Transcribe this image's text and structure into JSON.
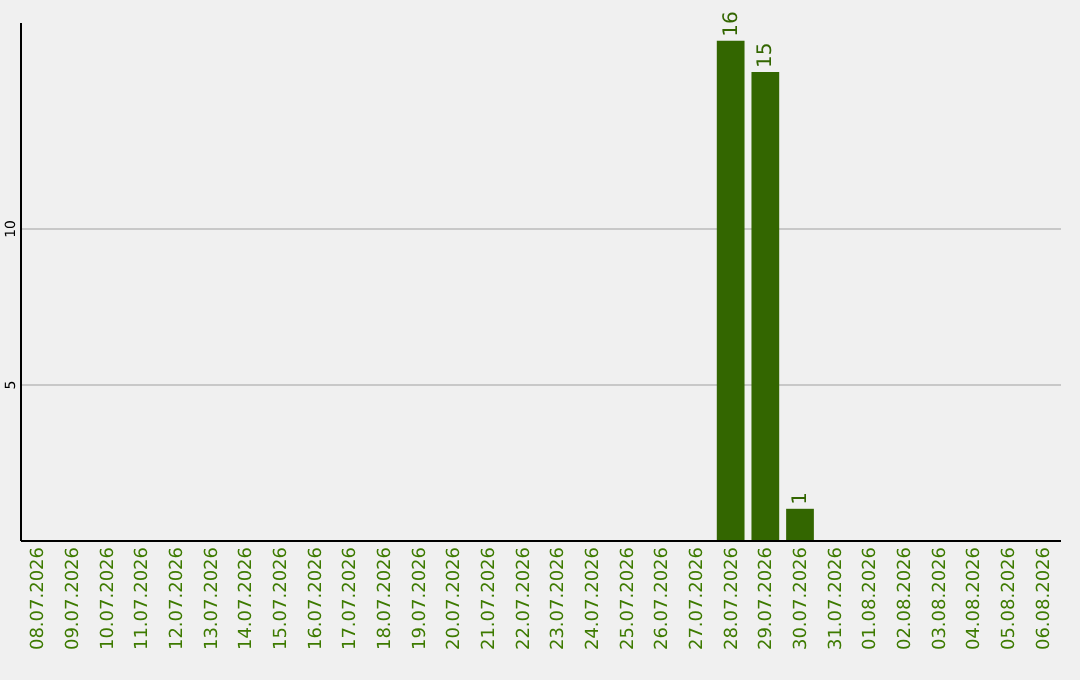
{
  "chart_data": {
    "type": "bar",
    "categories": [
      "08.07.2026",
      "09.07.2026",
      "10.07.2026",
      "11.07.2026",
      "12.07.2026",
      "13.07.2026",
      "14.07.2026",
      "15.07.2026",
      "16.07.2026",
      "17.07.2026",
      "18.07.2026",
      "19.07.2026",
      "20.07.2026",
      "21.07.2026",
      "22.07.2026",
      "23.07.2026",
      "24.07.2026",
      "25.07.2026",
      "26.07.2026",
      "27.07.2026",
      "28.07.2026",
      "29.07.2026",
      "30.07.2026",
      "31.07.2026",
      "01.08.2026",
      "02.08.2026",
      "03.08.2026",
      "04.08.2026",
      "05.08.2026",
      "06.08.2026"
    ],
    "values": [
      0,
      0,
      0,
      0,
      0,
      0,
      0,
      0,
      0,
      0,
      0,
      0,
      0,
      0,
      0,
      0,
      0,
      0,
      0,
      0,
      16,
      15,
      1,
      0,
      0,
      0,
      0,
      0,
      0,
      0
    ],
    "value_labels": [
      null,
      null,
      null,
      null,
      null,
      null,
      null,
      null,
      null,
      null,
      null,
      null,
      null,
      null,
      null,
      null,
      null,
      null,
      null,
      null,
      "16",
      "15",
      "1",
      null,
      null,
      null,
      null,
      null,
      null,
      null
    ],
    "color": "#336600",
    "ylim": [
      0,
      16.6
    ],
    "yticks": [
      5,
      10
    ],
    "grid": "y"
  }
}
